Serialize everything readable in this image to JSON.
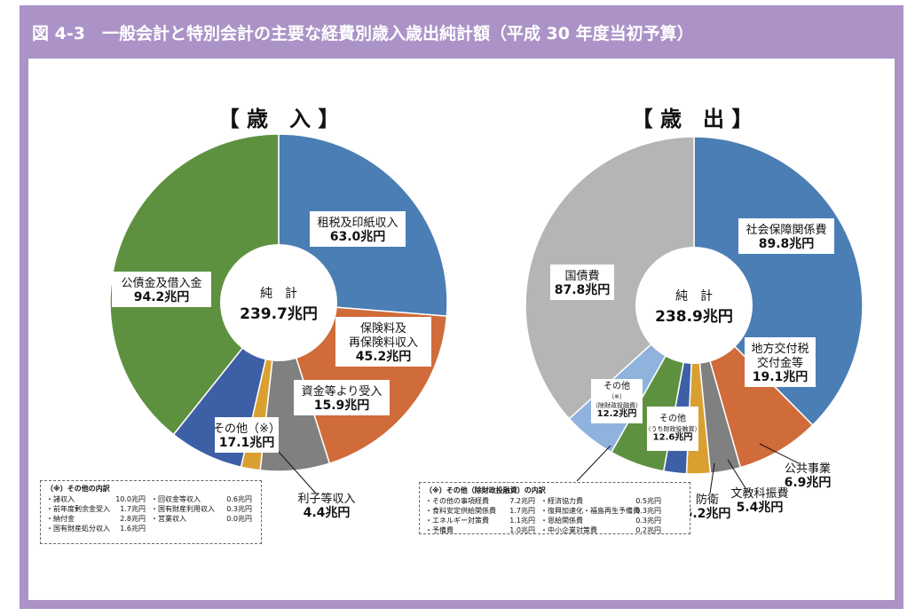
{
  "title": "図 4-3　一般会計と特別会計の主要な経費別歳入歳出純計額（平成 30 年度当初予算）",
  "colors": {
    "frame": "#ab93c7",
    "blue": "#4a7eb4",
    "orange": "#d06b3a",
    "gray": "#808080",
    "gold": "#d9a031",
    "darkblue": "#3d5fa6",
    "green": "#5e913f",
    "lightblue": "#8fb3dc",
    "lightgray": "#b5b5b5"
  },
  "chart_data": [
    {
      "type": "pie",
      "title": "【 歳　入 】",
      "center_label": "純　計",
      "center_value": "239.7兆円",
      "slices": [
        {
          "label": "租税及印紙収入",
          "value": 63.0,
          "value_label": "63.0兆円",
          "color": "#4a7eb4"
        },
        {
          "label": "保険料及\n再保険料収入",
          "value": 45.2,
          "value_label": "45.2兆円",
          "color": "#d06b3a"
        },
        {
          "label": "資金等より受入",
          "value": 15.9,
          "value_label": "15.9兆円",
          "color": "#808080"
        },
        {
          "label": "利子等収入",
          "value": 4.4,
          "value_label": "4.4兆円",
          "color": "#d9a031"
        },
        {
          "label": "その他",
          "value": 17.1,
          "value_label": "17.1兆円",
          "color": "#3d5fa6",
          "note": "（※）"
        },
        {
          "label": "公債金及借入金",
          "value": 94.2,
          "value_label": "94.2兆円",
          "color": "#5e913f"
        }
      ],
      "note": {
        "header": "（※）その他の内訳",
        "rows": [
          [
            [
              "・諸収入",
              "10.0兆円"
            ],
            [
              "・回収金等収入",
              "0.6兆円"
            ]
          ],
          [
            [
              "・前年度剰余金受入",
              "1.7兆円"
            ],
            [
              "・国有財産利用収入",
              "0.3兆円"
            ]
          ],
          [
            [
              "・納付金",
              "2.8兆円"
            ],
            [
              "・営業収入",
              "0.0兆円"
            ]
          ],
          [
            [
              "・国有財産処分収入",
              "1.6兆円"
            ]
          ]
        ]
      }
    },
    {
      "type": "pie",
      "title": "【 歳　出 】",
      "center_label": "純　計",
      "center_value": "238.9兆円",
      "slices": [
        {
          "label": "社会保障関係費",
          "value": 89.8,
          "value_label": "89.8兆円",
          "color": "#4a7eb4"
        },
        {
          "label": "地方交付税\n交付金等",
          "value": 19.1,
          "value_label": "19.1兆円",
          "color": "#d06b3a"
        },
        {
          "label": "公共事業",
          "value": 6.9,
          "value_label": "6.9兆円",
          "color": "#808080"
        },
        {
          "label": "文教科振費",
          "value": 5.4,
          "value_label": "5.4兆円",
          "color": "#d9a031"
        },
        {
          "label": "防衛",
          "value": 5.2,
          "value_label": "5.2兆円",
          "color": "#3d5fa6"
        },
        {
          "label": "その他",
          "value": 12.6,
          "value_label": "12.6兆円",
          "color": "#5e913f",
          "note": "（うち財政投融資）"
        },
        {
          "label": "その他",
          "value": 12.2,
          "value_label": "12.2兆円",
          "color": "#8fb3dc",
          "note": "（※）\n（除財政投融資）"
        },
        {
          "label": "国債費",
          "value": 87.8,
          "value_label": "87.8兆円",
          "color": "#b5b5b5"
        }
      ],
      "note": {
        "header": "（※）その他（除財政投融資）の内訳",
        "rows": [
          [
            [
              "・その他の事項経費",
              "7.2兆円"
            ],
            [
              "・経済協力費",
              "0.5兆円"
            ]
          ],
          [
            [
              "・食料安定供給関係費",
              "1.7兆円"
            ],
            [
              "・復興加速化・福島再生予備費",
              "0.3兆円"
            ]
          ],
          [
            [
              "・エネルギー対策費",
              "1.1兆円"
            ],
            [
              "・恩給関係費",
              "0.3兆円"
            ]
          ],
          [
            [
              "・予備費",
              "1.0兆円"
            ],
            [
              "・中小企業対策費",
              "0.2兆円"
            ]
          ]
        ]
      }
    }
  ]
}
